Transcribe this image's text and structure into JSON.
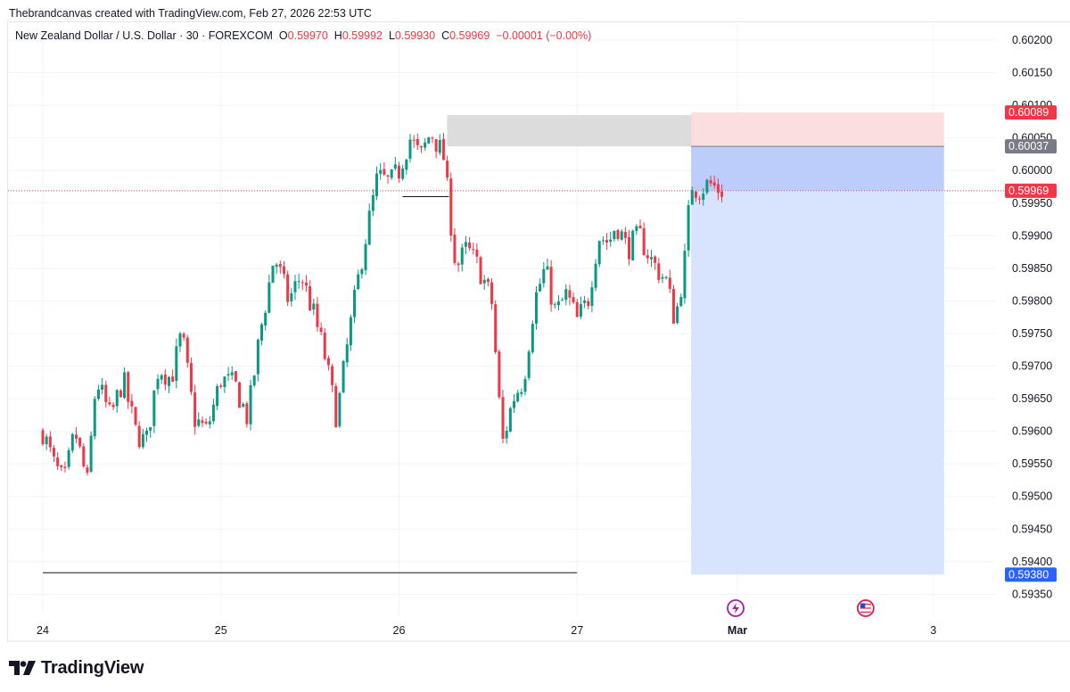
{
  "header": {
    "text": "Thebrandcanvas created with TradingView.com, Feb 27, 2026 22:53 UTC"
  },
  "legend": {
    "symbol": "New Zealand Dollar / U.S. Dollar · 30 · FOREXCOM",
    "open_label": "O",
    "open": "0.59970",
    "high_label": "H",
    "high": "0.59992",
    "low_label": "L",
    "low": "0.59930",
    "close_label": "C",
    "close": "0.59969",
    "change": "−0.00001 (−0.00%)"
  },
  "brand": {
    "name": "TradingView"
  },
  "colors": {
    "up": "#089981",
    "down": "#f23645",
    "grid": "#f0f3fa",
    "stop_zone": "#fbdadb",
    "target_zone": "#d4e0fd",
    "target_zone_dark": "#b5c8fb",
    "supply_zone": "#dcdcdc",
    "price_line": "#f23645",
    "target_label": "#2962ff"
  },
  "chart_data": {
    "type": "candlestick",
    "symbol": "NZDUSD",
    "timeframe": "30",
    "y_range": [
      0.59335,
      0.60215
    ],
    "y_ticks": [
      "0.60200",
      "0.60150",
      "0.60100",
      "0.60050",
      "0.60000",
      "0.59950",
      "0.59900",
      "0.59850",
      "0.59800",
      "0.59750",
      "0.59700",
      "0.59650",
      "0.59600",
      "0.59550",
      "0.59500",
      "0.59450",
      "0.59400",
      "0.59350"
    ],
    "x_ticks": [
      {
        "label": "24",
        "day": 24
      },
      {
        "label": "25",
        "day": 25
      },
      {
        "label": "26",
        "day": 26
      },
      {
        "label": "27",
        "day": 27
      },
      {
        "label": "Mar",
        "day": 27.9
      },
      {
        "label": "3",
        "day": 29
      }
    ],
    "waypoints": [
      [
        24.0,
        0.596
      ],
      [
        24.06,
        0.5955
      ],
      [
        24.12,
        0.5952
      ],
      [
        24.18,
        0.596
      ],
      [
        24.25,
        0.5952
      ],
      [
        24.3,
        0.5968
      ],
      [
        24.38,
        0.5962
      ],
      [
        24.45,
        0.5968
      ],
      [
        24.52,
        0.596
      ],
      [
        24.58,
        0.5958
      ],
      [
        24.65,
        0.597
      ],
      [
        24.72,
        0.5968
      ],
      [
        24.78,
        0.5975
      ],
      [
        24.85,
        0.5962
      ],
      [
        24.92,
        0.596
      ],
      [
        25.0,
        0.5968
      ],
      [
        25.08,
        0.5967
      ],
      [
        25.15,
        0.5962
      ],
      [
        25.22,
        0.5975
      ],
      [
        25.3,
        0.5987
      ],
      [
        25.38,
        0.598
      ],
      [
        25.45,
        0.5984
      ],
      [
        25.52,
        0.5978
      ],
      [
        25.58,
        0.5972
      ],
      [
        25.65,
        0.5962
      ],
      [
        25.72,
        0.5975
      ],
      [
        25.8,
        0.5988
      ],
      [
        25.88,
        0.5999
      ],
      [
        25.95,
        0.5998
      ],
      [
        26.0,
        0.6
      ],
      [
        26.06,
        0.6005
      ],
      [
        26.12,
        0.6002
      ],
      [
        26.18,
        0.6006
      ],
      [
        26.25,
        0.6002
      ],
      [
        26.32,
        0.5985
      ],
      [
        26.38,
        0.5988
      ],
      [
        26.45,
        0.5985
      ],
      [
        26.52,
        0.598
      ],
      [
        26.58,
        0.5958
      ],
      [
        26.64,
        0.5965
      ],
      [
        26.7,
        0.5968
      ],
      [
        26.76,
        0.598
      ],
      [
        26.82,
        0.5985
      ],
      [
        26.88,
        0.5978
      ],
      [
        26.94,
        0.5981
      ],
      [
        27.0,
        0.5977
      ],
      [
        27.06,
        0.598
      ],
      [
        27.12,
        0.599
      ],
      [
        27.18,
        0.5989
      ],
      [
        27.22,
        0.5992
      ],
      [
        27.28,
        0.5988
      ],
      [
        27.35,
        0.599
      ],
      [
        27.42,
        0.5986
      ],
      [
        27.5,
        0.5983
      ],
      [
        27.55,
        0.5977
      ],
      [
        27.6,
        0.5985
      ],
      [
        27.64,
        0.5998
      ],
      [
        27.68,
        0.5997
      ],
      [
        27.74,
        0.5998
      ],
      [
        27.8,
        0.5997
      ],
      [
        27.83,
        0.5997
      ]
    ],
    "horizontal_levels": [
      {
        "price": 0.59969,
        "style": "dotted",
        "label": "0.59969"
      },
      {
        "price": 0.59383,
        "style": "solid",
        "from_day": 24.0,
        "to_day": 27.0
      },
      {
        "price": 0.5996,
        "style": "solid",
        "from_day": 26.02,
        "to_day": 26.28
      }
    ],
    "zones": [
      {
        "name": "supply",
        "from_day": 26.27,
        "to_day": 27.65,
        "top": 0.60085,
        "bottom": 0.60037
      },
      {
        "name": "stop",
        "from_day": 27.64,
        "to_day": 29.06,
        "top": 0.60089,
        "bottom": 0.60037
      },
      {
        "name": "entry-to-current",
        "from_day": 27.64,
        "to_day": 29.06,
        "top": 0.60037,
        "bottom": 0.59969
      },
      {
        "name": "target",
        "from_day": 27.64,
        "to_day": 29.06,
        "top": 0.59969,
        "bottom": 0.5938
      }
    ],
    "price_labels": [
      {
        "text": "0.60089",
        "price": 0.60089,
        "kind": "stop"
      },
      {
        "text": "0.60037",
        "price": 0.60037,
        "kind": "entry"
      },
      {
        "text": "0.59969",
        "price": 0.59969,
        "kind": "current"
      },
      {
        "text": "0.59380",
        "price": 0.5938,
        "kind": "target"
      }
    ],
    "events": [
      {
        "icon": "lightning-event-icon",
        "day": 27.89
      },
      {
        "icon": "us-flag-event-icon",
        "day": 28.62
      }
    ]
  }
}
